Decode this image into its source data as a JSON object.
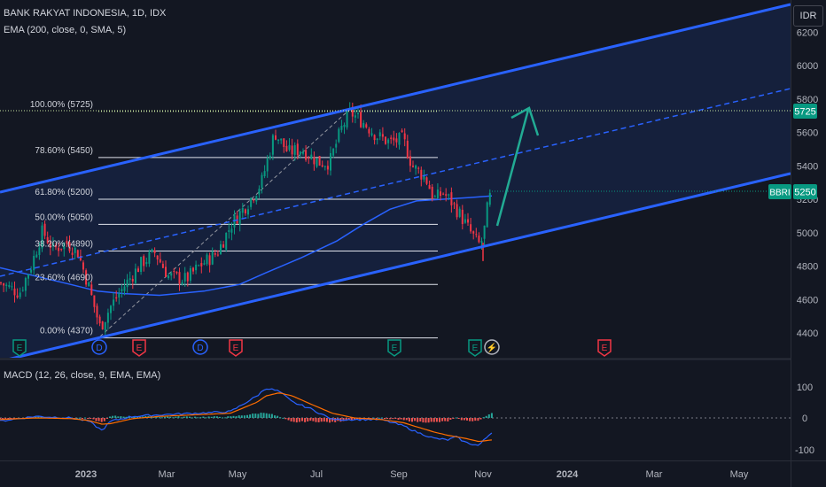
{
  "header": {
    "symbol_line": "BANK RAKYAT INDONESIA, 1D, IDX",
    "indicator_line": "EMA (200, close, 0, SMA, 5)",
    "currency": "IDR"
  },
  "macd": {
    "label": "MACD (12, 26, close, 9, EMA, EMA)",
    "y_labels": [
      "100",
      "0",
      "-100"
    ]
  },
  "price_axis": {
    "ticks": [
      "6200",
      "6000",
      "5800",
      "5600",
      "5400",
      "5200",
      "5000",
      "4800",
      "4600",
      "4400"
    ],
    "last_price_tag": "5725",
    "symbol_tag": "BBRI",
    "current_price_tag": "5250"
  },
  "time_axis": {
    "ticks": [
      "2023",
      "Mar",
      "May",
      "Jul",
      "Sep",
      "Nov",
      "2024",
      "Mar",
      "May"
    ]
  },
  "fib_levels": [
    {
      "label": "100.00% (5725)",
      "price": 5725
    },
    {
      "label": "78.60% (5450)",
      "price": 5450
    },
    {
      "label": "61.80% (5200)",
      "price": 5200
    },
    {
      "label": "50.00% (5050)",
      "price": 5050
    },
    {
      "label": "38.20% (4890)",
      "price": 4890
    },
    {
      "label": "23.60% (4690)",
      "price": 4690
    },
    {
      "label": "0.00% (4370)",
      "price": 4370
    }
  ],
  "event_markers": [
    {
      "type": "E",
      "color": "#089981"
    },
    {
      "type": "D",
      "color": "#2962ff"
    },
    {
      "type": "E",
      "color": "#f23645"
    },
    {
      "type": "D",
      "color": "#2962ff"
    },
    {
      "type": "E",
      "color": "#f23645"
    },
    {
      "type": "E",
      "color": "#089981"
    },
    {
      "type": "E",
      "color": "#089981"
    },
    {
      "type": "⚡",
      "color": "#b2b5be"
    },
    {
      "type": "E",
      "color": "#f23645"
    }
  ],
  "colors": {
    "up": "#089981",
    "down": "#f23645",
    "channel": "#2962ff",
    "ema": "#2962ff",
    "arrow": "#22ab94",
    "macd_line": "#2962ff",
    "signal_line": "#ff6d00"
  }
}
